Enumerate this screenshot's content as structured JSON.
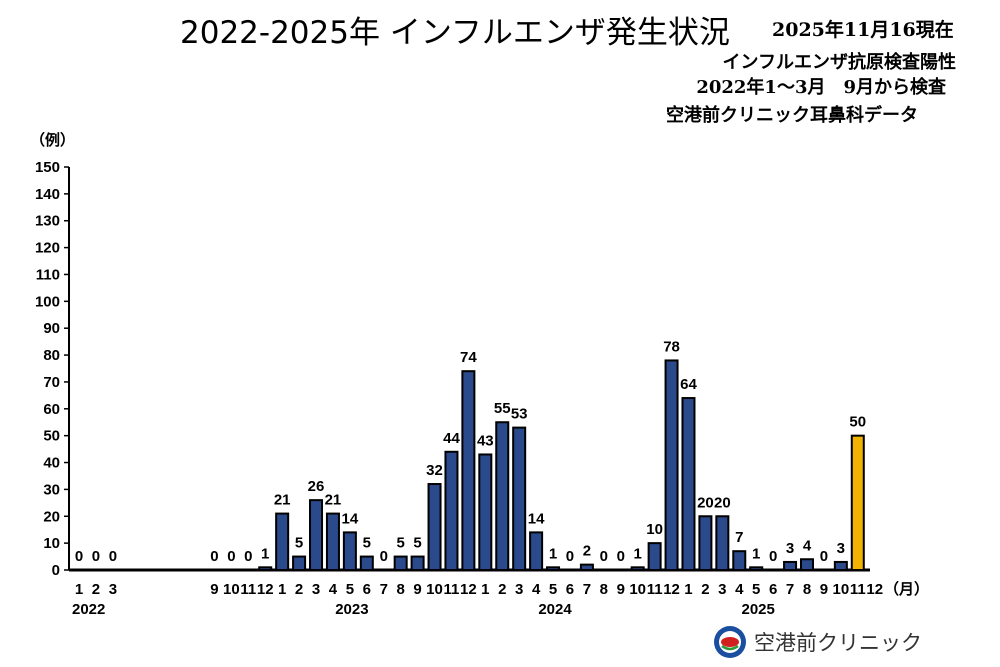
{
  "header": {
    "title": "2022-2025年 インフルエンザ発生状況",
    "as_of": "2025年11月16現在",
    "subtitle_lines": [
      "インフルエンザ抗原検査陽性",
      "2022年1〜3月　9月から検査",
      "空港前クリニック耳鼻科データ"
    ]
  },
  "footer": {
    "clinic_name": "空港前クリニック"
  },
  "colors": {
    "bar": "#2b4a8c",
    "bar_highlight": "#f2b300",
    "axis": "#000000"
  },
  "chart_data": {
    "type": "bar",
    "ylabel": "（例）",
    "xunit": "（月）",
    "ylim": [
      0,
      150
    ],
    "yticks": [
      0,
      10,
      20,
      30,
      40,
      50,
      60,
      70,
      80,
      90,
      100,
      110,
      120,
      130,
      140,
      150
    ],
    "grid": false,
    "year_labels": [
      {
        "label": "2022",
        "at_index": 0
      },
      {
        "label": "2023",
        "at_index": 16
      },
      {
        "label": "2024",
        "at_index": 28
      },
      {
        "label": "2025",
        "at_index": 40
      }
    ],
    "bars": [
      {
        "month": "1",
        "value": 0
      },
      {
        "month": "2",
        "value": 0
      },
      {
        "month": "3",
        "value": 0
      },
      {
        "month": "",
        "value": null
      },
      {
        "month": "",
        "value": null
      },
      {
        "month": "",
        "value": null
      },
      {
        "month": "",
        "value": null
      },
      {
        "month": "",
        "value": null
      },
      {
        "month": "9",
        "value": 0
      },
      {
        "month": "10",
        "value": 0
      },
      {
        "month": "11",
        "value": 0
      },
      {
        "month": "12",
        "value": 1
      },
      {
        "month": "1",
        "value": 21
      },
      {
        "month": "2",
        "value": 5
      },
      {
        "month": "3",
        "value": 26
      },
      {
        "month": "4",
        "value": 21
      },
      {
        "month": "5",
        "value": 14
      },
      {
        "month": "6",
        "value": 5
      },
      {
        "month": "7",
        "value": 0
      },
      {
        "month": "8",
        "value": 5
      },
      {
        "month": "9",
        "value": 5
      },
      {
        "month": "10",
        "value": 32
      },
      {
        "month": "11",
        "value": 44
      },
      {
        "month": "12",
        "value": 74
      },
      {
        "month": "1",
        "value": 43
      },
      {
        "month": "2",
        "value": 55
      },
      {
        "month": "3",
        "value": 53
      },
      {
        "month": "4",
        "value": 14
      },
      {
        "month": "5",
        "value": 1
      },
      {
        "month": "6",
        "value": 0
      },
      {
        "month": "7",
        "value": 2
      },
      {
        "month": "8",
        "value": 0
      },
      {
        "month": "9",
        "value": 0
      },
      {
        "month": "10",
        "value": 1
      },
      {
        "month": "11",
        "value": 10
      },
      {
        "month": "12",
        "value": 78
      },
      {
        "month": "1",
        "value": 64
      },
      {
        "month": "2",
        "value": 20
      },
      {
        "month": "3",
        "value": 20
      },
      {
        "month": "4",
        "value": 7
      },
      {
        "month": "5",
        "value": 1
      },
      {
        "month": "6",
        "value": 0
      },
      {
        "month": "7",
        "value": 3
      },
      {
        "month": "8",
        "value": 4
      },
      {
        "month": "9",
        "value": 0
      },
      {
        "month": "10",
        "value": 3
      },
      {
        "month": "11",
        "value": 50,
        "highlight": true
      },
      {
        "month": "12",
        "value": null
      }
    ]
  }
}
